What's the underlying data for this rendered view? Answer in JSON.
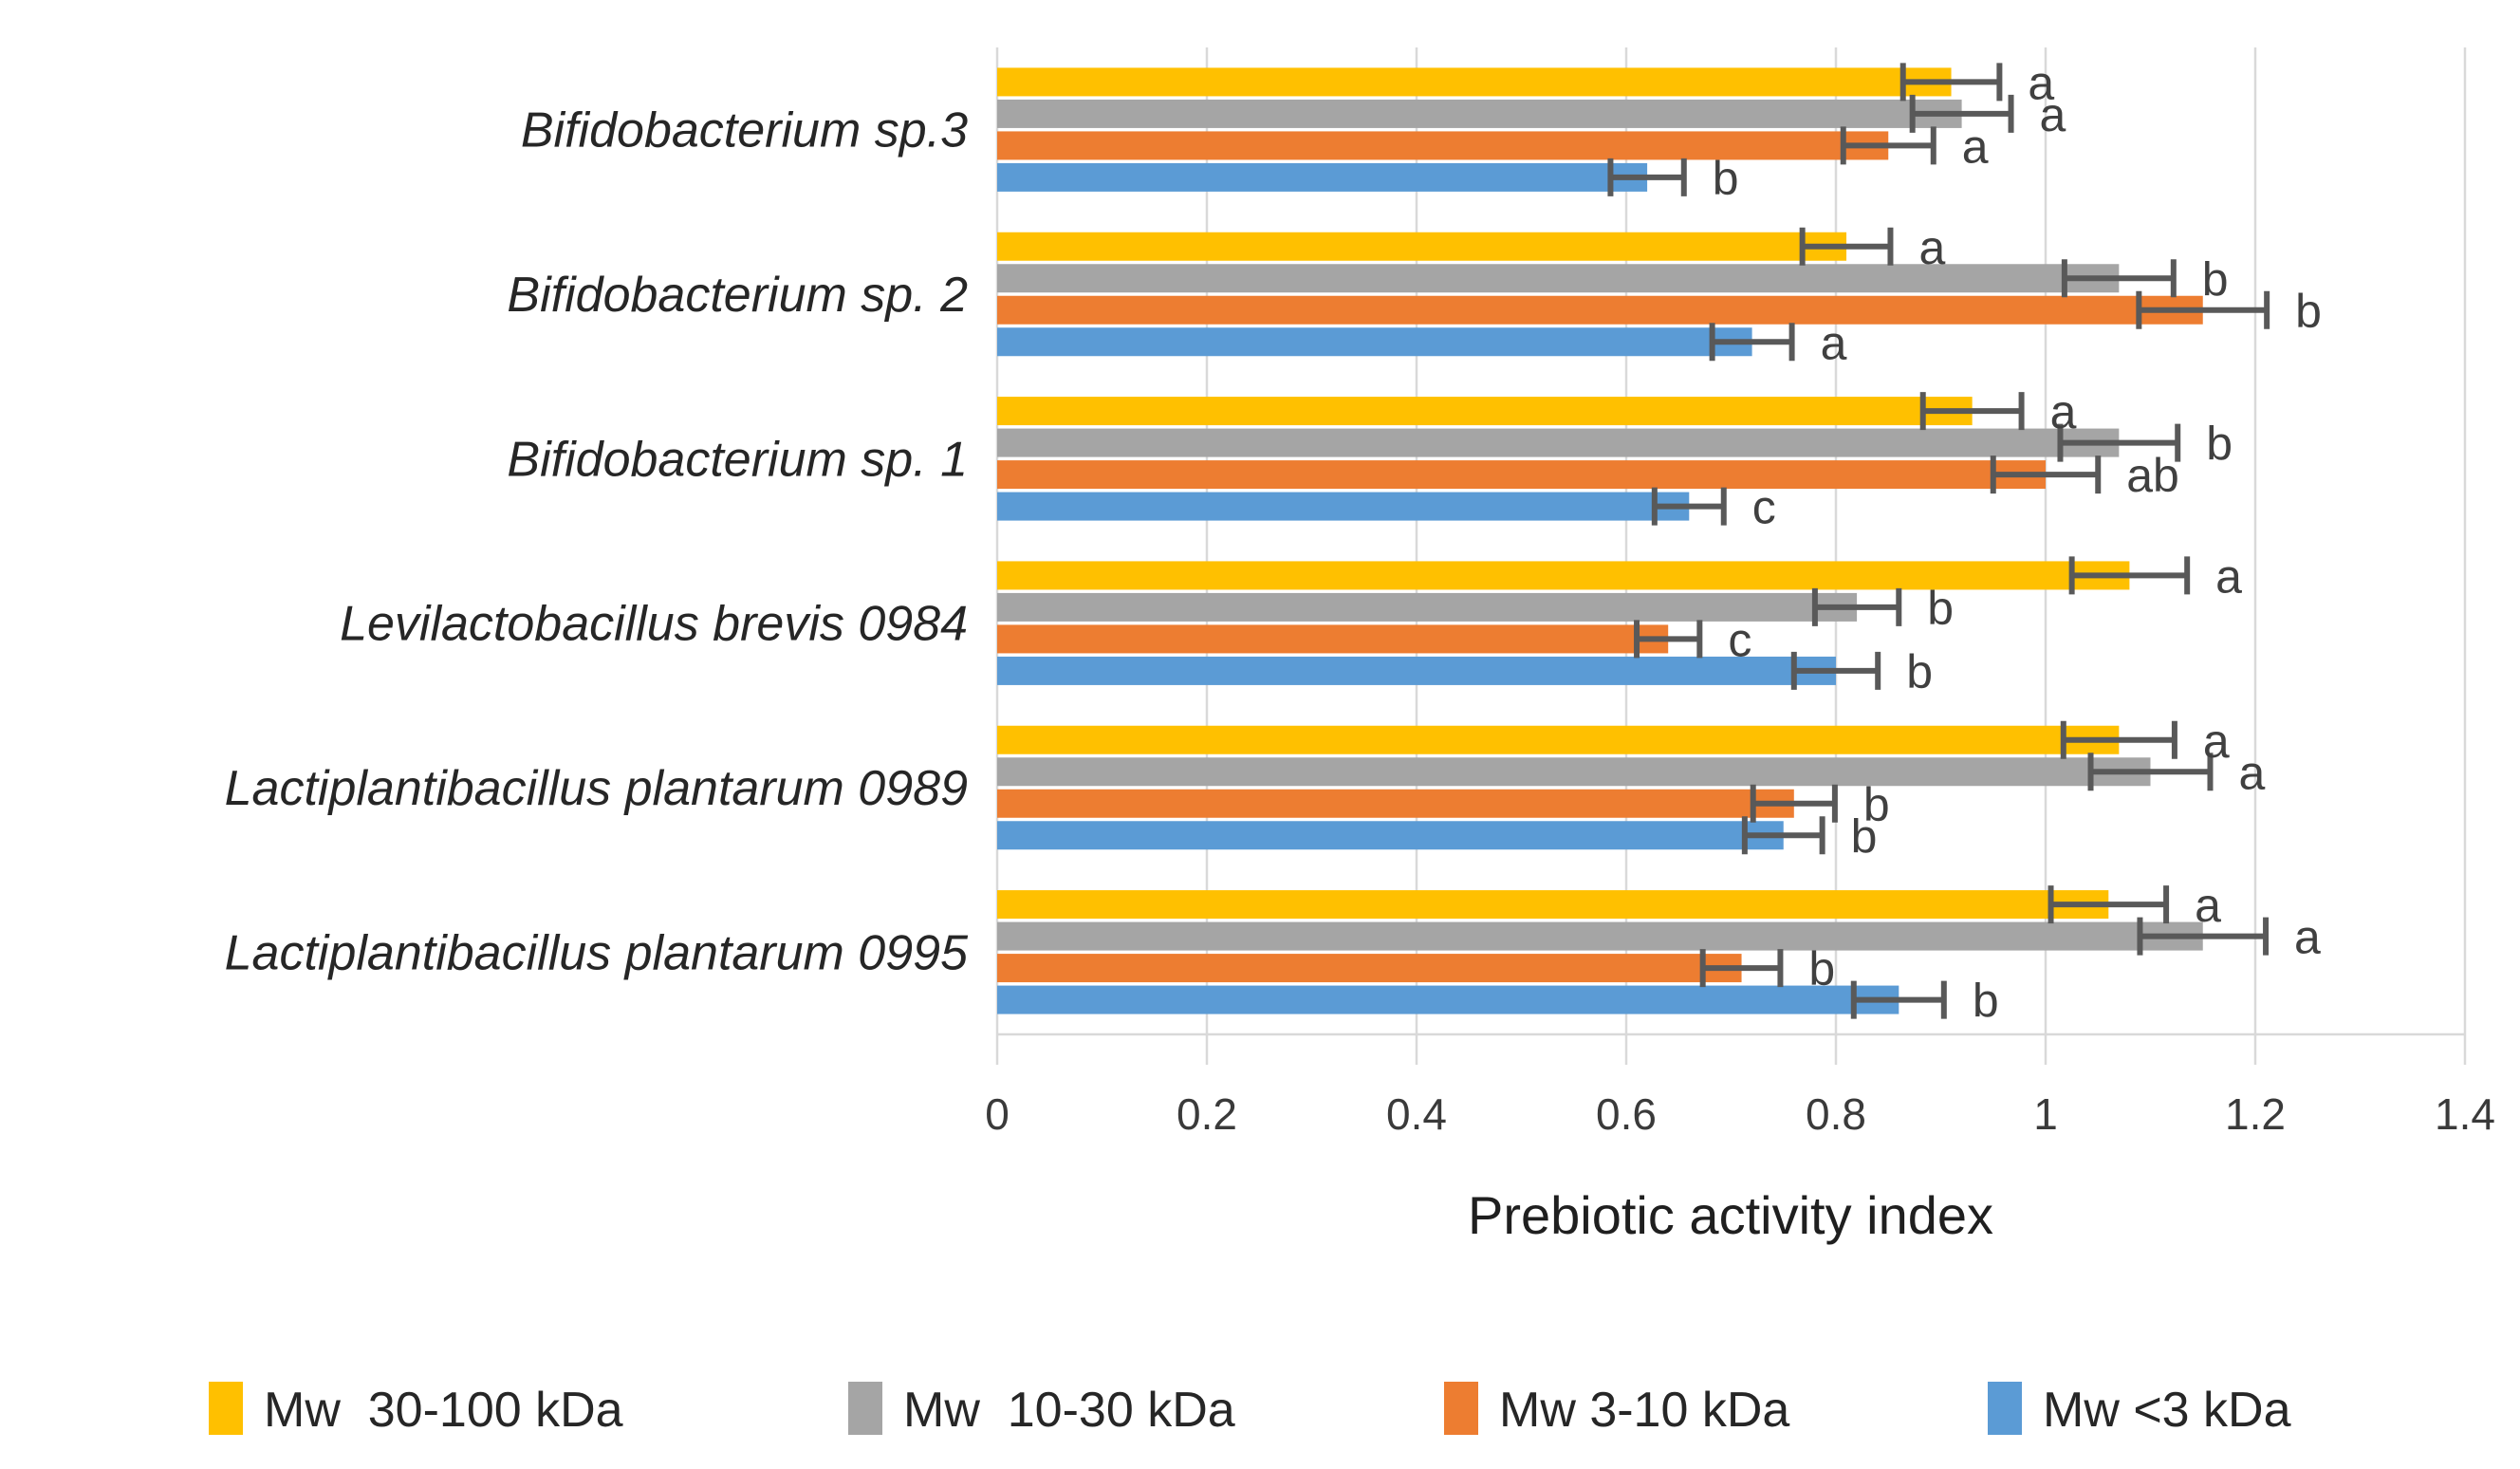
{
  "chart_data": {
    "type": "bar",
    "orientation": "horizontal",
    "xlabel": "Prebiotic activity index",
    "xlim": [
      0,
      1.4
    ],
    "xticks": [
      0,
      0.2,
      0.4,
      0.6,
      0.8,
      1,
      1.2,
      1.4
    ],
    "xtick_labels": [
      "0",
      "0.2",
      "0.4",
      "0.6",
      "0.8",
      "1",
      "1.2",
      "1.4"
    ],
    "grid": true,
    "legend_position": "bottom",
    "categories": [
      "Bifidobacterium sp.3",
      "Bifidobacterium sp. 2",
      "Bifidobacterium sp. 1",
      "Levilactobacillus brevis 0984",
      "Lactiplantibacillus plantarum 0989",
      "Lactiplantibacillus plantarum 0995"
    ],
    "series": [
      {
        "name": "Mw  30-100 kDa",
        "color": "#FFC000",
        "values": [
          0.91,
          0.81,
          0.93,
          1.08,
          1.07,
          1.06
        ],
        "errors": [
          0.046,
          0.042,
          0.047,
          0.055,
          0.053,
          0.055
        ],
        "letters": [
          "a",
          "a",
          "a",
          "a",
          "a",
          "a"
        ]
      },
      {
        "name": "Mw  10-30 kDa",
        "color": "#A5A5A5",
        "values": [
          0.92,
          1.07,
          1.07,
          0.82,
          1.1,
          1.15
        ],
        "errors": [
          0.047,
          0.052,
          0.056,
          0.04,
          0.057,
          0.06
        ],
        "letters": [
          "a",
          "b",
          "b",
          "b",
          "a",
          "a"
        ]
      },
      {
        "name": "Mw 3-10 kDa",
        "color": "#ED7D31",
        "values": [
          0.85,
          1.15,
          1.0,
          0.64,
          0.76,
          0.71
        ],
        "errors": [
          0.043,
          0.061,
          0.05,
          0.03,
          0.039,
          0.037
        ],
        "letters": [
          "a",
          "b",
          "ab",
          "c",
          "b",
          "b"
        ]
      },
      {
        "name": "Mw <3 kDa",
        "color": "#5B9BD5",
        "values": [
          0.62,
          0.72,
          0.66,
          0.8,
          0.75,
          0.86
        ],
        "errors": [
          0.035,
          0.038,
          0.033,
          0.04,
          0.037,
          0.043
        ],
        "letters": [
          "b",
          "a",
          "c",
          "b",
          "b",
          "b"
        ]
      }
    ],
    "colors": {
      "gridline": "#D9D9D9",
      "axis_line": "#D9D9D9",
      "error_bar": "#595959",
      "letter_text": "#404040"
    }
  }
}
